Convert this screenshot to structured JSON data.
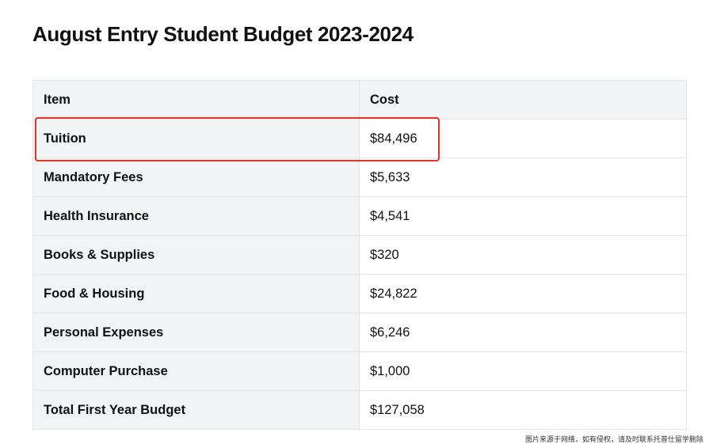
{
  "page": {
    "title": "August Entry Student Budget 2023-2024"
  },
  "table": {
    "headers": {
      "item": "Item",
      "cost": "Cost"
    },
    "rows": [
      {
        "item": "Tuition",
        "cost": "$84,496"
      },
      {
        "item": "Mandatory Fees",
        "cost": "$5,633"
      },
      {
        "item": "Health Insurance",
        "cost": "$4,541"
      },
      {
        "item": "Books & Supplies",
        "cost": "$320"
      },
      {
        "item": "Food & Housing",
        "cost": "$24,822"
      },
      {
        "item": "Personal Expenses",
        "cost": "$6,246"
      },
      {
        "item": "Computer Purchase",
        "cost": "$1,000"
      },
      {
        "item": "Total First Year Budget",
        "cost": "$127,058"
      }
    ]
  },
  "annotation": {
    "highlight_color": "#e8302a",
    "highlighted_row": "Tuition"
  },
  "watermark": {
    "text": "图片来源于网络，如有侵权，请及时联系托普仕留学删除"
  },
  "colors": {
    "header_bg": "#f1f3f5",
    "border": "#e3e5e8",
    "text": "#111111"
  }
}
